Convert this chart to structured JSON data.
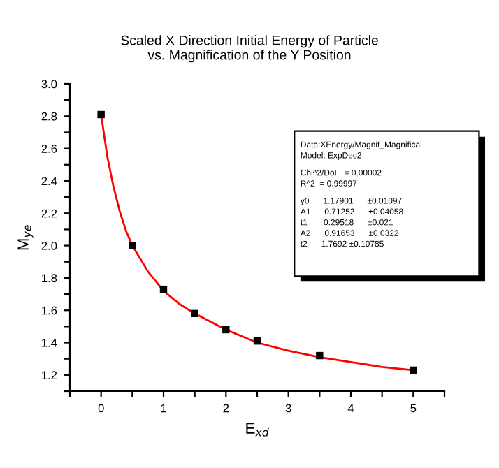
{
  "chart_data": {
    "type": "scatter",
    "title": "Scaled X Direction Initial Energy of Particle\nvs. Magnification of the Y Position",
    "xlabel": "E$_{xd}$",
    "ylabel": "M$_{ye}$",
    "xlim": [
      -0.5,
      5.5
    ],
    "ylim": [
      1.1,
      3.0
    ],
    "xticks": [
      {
        "value": -0.5,
        "label": null
      },
      0,
      {
        "value": 0.5,
        "label": null
      },
      1,
      {
        "value": 1.5,
        "label": null
      },
      2,
      {
        "value": 2.5,
        "label": null
      },
      3,
      {
        "value": 3.5,
        "label": null
      },
      4,
      {
        "value": 4.5,
        "label": null
      },
      5,
      {
        "value": 5.5,
        "label": null
      }
    ],
    "yticks": [
      {
        "value": 1.1,
        "label": null
      },
      {
        "value": 1.2,
        "label": "1.2"
      },
      {
        "value": 1.3,
        "label": null
      },
      {
        "value": 1.4,
        "label": "1.4"
      },
      {
        "value": 1.5,
        "label": null
      },
      {
        "value": 1.6,
        "label": "1.6"
      },
      {
        "value": 1.7,
        "label": null
      },
      {
        "value": 1.8,
        "label": "1.8"
      },
      {
        "value": 1.9,
        "label": null
      },
      {
        "value": 2.0,
        "label": "2.0"
      },
      {
        "value": 2.1,
        "label": null
      },
      {
        "value": 2.2,
        "label": "2.2"
      },
      {
        "value": 2.3,
        "label": null
      },
      {
        "value": 2.4,
        "label": "2.4"
      },
      {
        "value": 2.5,
        "label": null
      },
      {
        "value": 2.6,
        "label": "2.6"
      },
      {
        "value": 2.7,
        "label": null
      },
      {
        "value": 2.8,
        "label": "2.8"
      },
      {
        "value": 2.9,
        "label": null
      },
      {
        "value": 3.0,
        "label": "3.0"
      }
    ],
    "grid": false,
    "legend": false,
    "series": [
      {
        "color": "#000000",
        "marker": "square",
        "x": [
          0,
          0.5,
          1,
          1.5,
          2,
          2.5,
          3.5,
          5
        ],
        "values": [
          2.81,
          2.0,
          1.73,
          1.58,
          1.48,
          1.41,
          1.32,
          1.23
        ]
      },
      {
        "type": "line",
        "color": "#ff0000",
        "marker": "none",
        "line_style": "solid",
        "x": [
          0,
          0.1,
          0.2,
          0.3,
          0.4,
          0.5,
          0.75,
          1,
          1.25,
          1.5,
          2,
          2.5,
          3,
          3.5,
          4,
          4.5,
          5
        ],
        "values": [
          2.81,
          2.55,
          2.36,
          2.21,
          2.09,
          2.0,
          1.84,
          1.72,
          1.64,
          1.58,
          1.48,
          1.4,
          1.35,
          1.31,
          1.28,
          1.25,
          1.23
        ]
      }
    ],
    "annotations": [
      "Data:XEnergy/Magnif_Magnifical",
      "Model: ExpDec2",
      "Chi^2/DoF  = 0.00002",
      "R^2  = 0.99997",
      "y0      1.17901      ±0.01097",
      "A1      0.71252      ±0.04058",
      "t1       0.29518      ±0.021",
      "A2      0.91653      ±0.0322",
      "t2      1.7692 ±0.10785"
    ]
  }
}
